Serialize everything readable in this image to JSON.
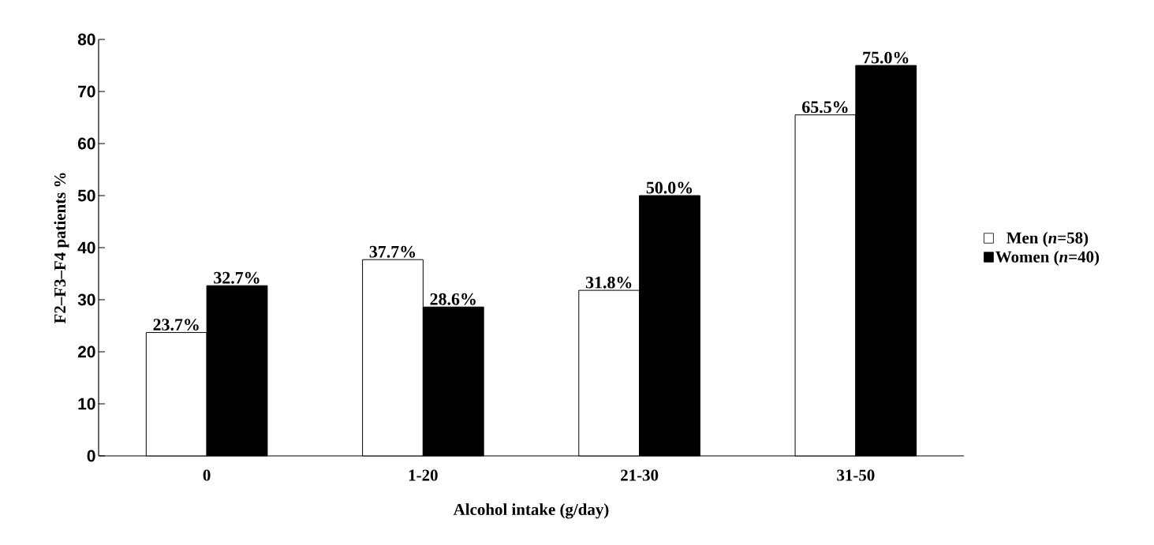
{
  "chart_data": {
    "type": "bar",
    "xlabel": "Alcohol intake (g/day)",
    "ylabel": "F2–F3–F4 patients %",
    "categories": [
      "0",
      "1-20",
      "21-30",
      "31-50"
    ],
    "series": [
      {
        "name": "Men (*n*=58)",
        "color": "#ffffff",
        "values": [
          23.7,
          37.7,
          31.8,
          65.5
        ],
        "value_labels": [
          "23.7%",
          "37.7%",
          "31.8%",
          "65.5%"
        ]
      },
      {
        "name": "Women (*n*=40)",
        "color": "#000000",
        "values": [
          32.7,
          28.6,
          50.0,
          75.0
        ],
        "value_labels": [
          "32.7%",
          "28.6%",
          "50.0%",
          "75.0%"
        ]
      }
    ],
    "ylim": [
      0,
      80
    ],
    "yticks": [
      0,
      10,
      20,
      30,
      40,
      50,
      60,
      70,
      80
    ],
    "grid": false,
    "legend": "right"
  }
}
